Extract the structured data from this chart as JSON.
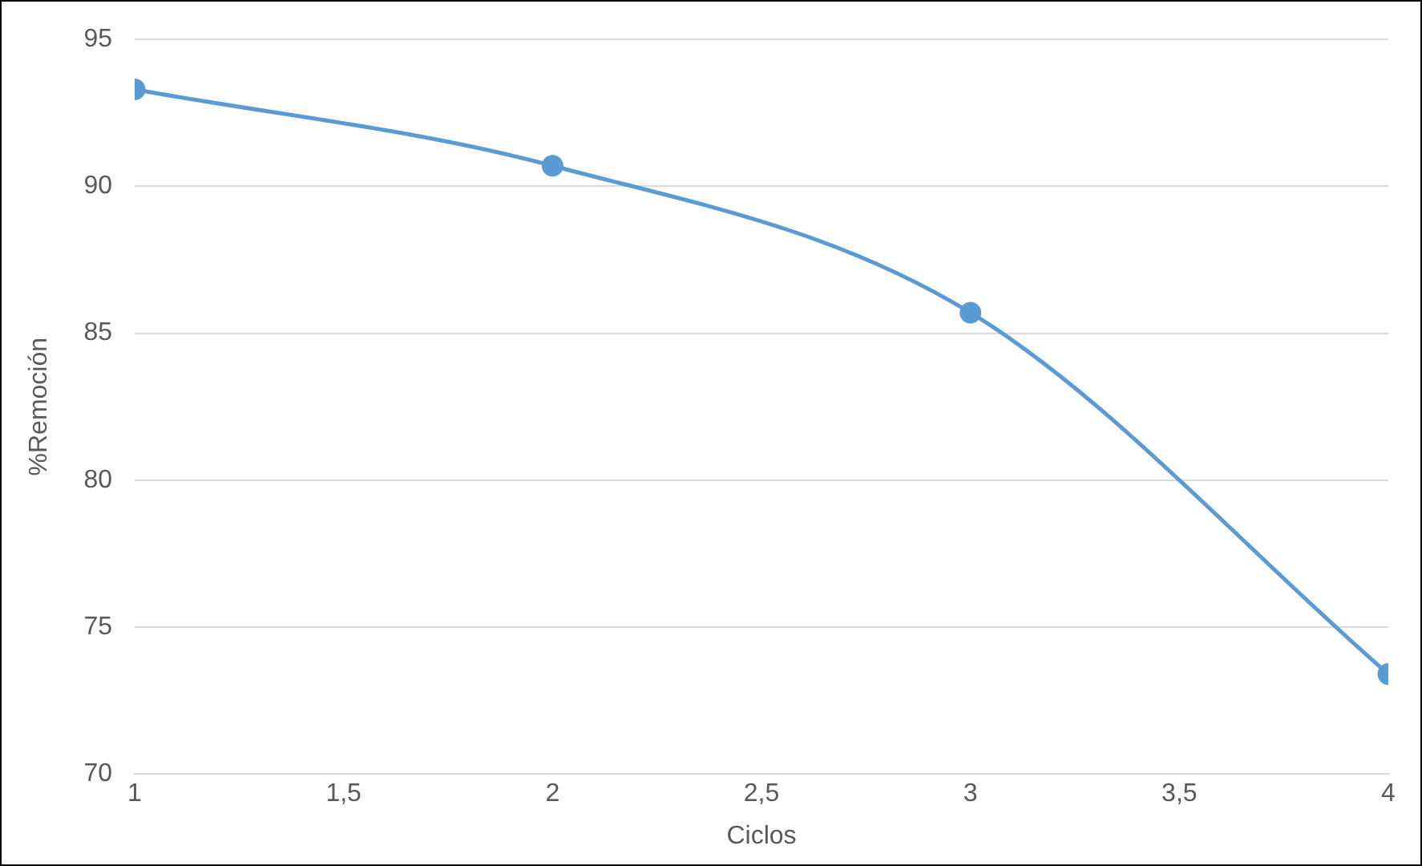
{
  "chart_data": {
    "type": "line",
    "xlabel": "Ciclos",
    "ylabel": "%Remoción",
    "x": [
      1,
      2,
      3,
      4
    ],
    "series": [
      {
        "color": "#5b9bd5",
        "values": [
          93.3,
          90.7,
          85.7,
          73.4
        ]
      }
    ],
    "xlim": [
      1,
      4
    ],
    "xticks": [
      1,
      {
        "value": 1.5,
        "label": "1,5"
      },
      2,
      {
        "value": 2.5,
        "label": "2,5"
      },
      3,
      {
        "value": 3.5,
        "label": "3,5"
      },
      4
    ],
    "ylim": [
      70,
      95
    ],
    "yticks": [
      70,
      75,
      80,
      85,
      90,
      95
    ],
    "grid": "y",
    "legend": false,
    "marker": "circle",
    "line_style": "solid"
  }
}
